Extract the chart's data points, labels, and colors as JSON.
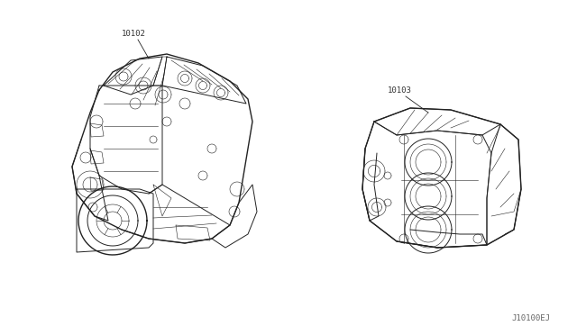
{
  "background_color": "#ffffff",
  "figure_width": 6.4,
  "figure_height": 3.72,
  "dpi": 100,
  "ref_code": "J10100EJ",
  "ref_code_fontsize": 6.5,
  "ref_code_color": "#666666",
  "part1_label": "10102",
  "part2_label": "10103",
  "label_fontsize": 6.5,
  "label_color": "#333333",
  "line_color": "#222222"
}
